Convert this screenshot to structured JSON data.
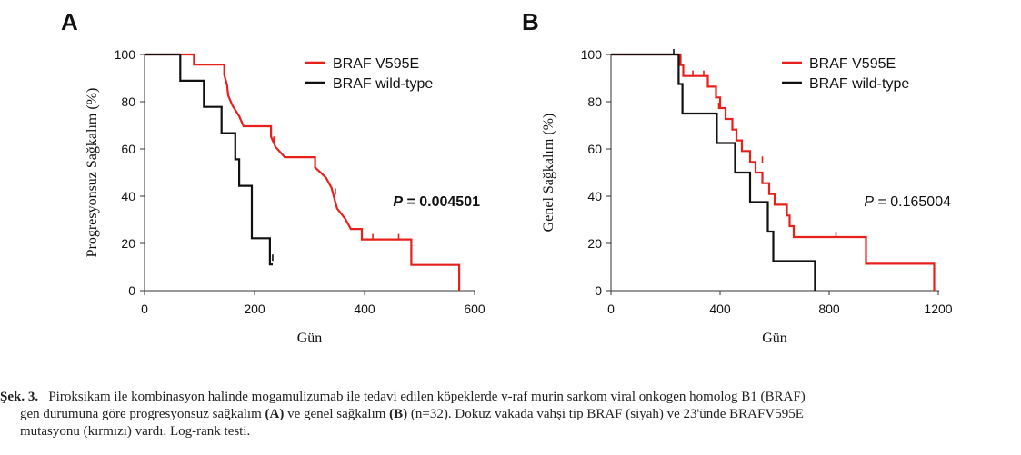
{
  "chart_data": [
    {
      "type": "line",
      "panel_letter": "A",
      "xlabel": "Gün",
      "ylabel": "Progresyonsuz Sağkalım (%)",
      "xlim": [
        0,
        600
      ],
      "ylim": [
        0,
        100
      ],
      "xticks": [
        0,
        200,
        400,
        600
      ],
      "yticks": [
        0,
        20,
        40,
        60,
        80,
        100
      ],
      "legend_position": "top-right",
      "p_label": "P",
      "p_value": " = 0.004501",
      "p_bold": true,
      "series": [
        {
          "name": "BRAF V595E",
          "color": "#e8201c",
          "steps": [
            [
              0,
              100
            ],
            [
              90,
              100
            ],
            [
              90,
              95.7
            ],
            [
              145,
              95.7
            ],
            [
              145,
              91.3
            ],
            [
              150,
              87
            ],
            [
              152,
              82.6
            ],
            [
              160,
              78.3
            ],
            [
              172,
              73.9
            ],
            [
              180,
              69.6
            ],
            [
              230,
              69.6
            ],
            [
              230,
              65.2
            ],
            [
              238,
              60.9
            ],
            [
              255,
              56.5
            ],
            [
              310,
              56.5
            ],
            [
              310,
              52.2
            ],
            [
              330,
              47.8
            ],
            [
              340,
              43.5
            ],
            [
              345,
              39.1
            ],
            [
              350,
              34.8
            ],
            [
              365,
              30.4
            ],
            [
              375,
              26.1
            ],
            [
              395,
              26.1
            ],
            [
              395,
              21.7
            ],
            [
              485,
              21.7
            ],
            [
              485,
              10.9
            ],
            [
              572,
              10.9
            ],
            [
              572,
              0
            ]
          ],
          "censored": [
            [
              230,
              65.2
            ],
            [
              235,
              63
            ],
            [
              347,
              41
            ],
            [
              415,
              21.7
            ],
            [
              462,
              21.7
            ]
          ]
        },
        {
          "name": "BRAF wild-type",
          "color": "#111111",
          "steps": [
            [
              0,
              100
            ],
            [
              65,
              100
            ],
            [
              65,
              88.9
            ],
            [
              108,
              88.9
            ],
            [
              108,
              77.8
            ],
            [
              140,
              77.8
            ],
            [
              140,
              66.7
            ],
            [
              165,
              66.7
            ],
            [
              165,
              55.6
            ],
            [
              172,
              55.6
            ],
            [
              172,
              44.4
            ],
            [
              195,
              44.4
            ],
            [
              195,
              22.2
            ],
            [
              228,
              22.2
            ],
            [
              228,
              11.1
            ],
            [
              233,
              11.1
            ]
          ],
          "censored": [
            [
              233,
              13
            ]
          ]
        }
      ]
    },
    {
      "type": "line",
      "panel_letter": "B",
      "xlabel": "Gün",
      "ylabel": "Genel Sağkalım (%)",
      "xlim": [
        0,
        1200
      ],
      "ylim": [
        0,
        100
      ],
      "xticks": [
        0,
        400,
        800,
        1200
      ],
      "yticks": [
        0,
        20,
        40,
        60,
        80,
        100
      ],
      "legend_position": "top-right",
      "p_label": "P",
      "p_value": " = 0.165004",
      "p_bold": false,
      "series": [
        {
          "name": "BRAF V595E",
          "color": "#e8201c",
          "steps": [
            [
              0,
              100
            ],
            [
              255,
              100
            ],
            [
              255,
              95.5
            ],
            [
              265,
              95.5
            ],
            [
              265,
              90.9
            ],
            [
              355,
              90.9
            ],
            [
              355,
              86.4
            ],
            [
              385,
              86.4
            ],
            [
              385,
              81.8
            ],
            [
              400,
              81.8
            ],
            [
              400,
              77.3
            ],
            [
              420,
              77.3
            ],
            [
              420,
              72.7
            ],
            [
              445,
              72.7
            ],
            [
              445,
              68.2
            ],
            [
              460,
              68.2
            ],
            [
              460,
              63.6
            ],
            [
              480,
              63.6
            ],
            [
              480,
              59.1
            ],
            [
              510,
              59.1
            ],
            [
              510,
              54.5
            ],
            [
              530,
              54.5
            ],
            [
              530,
              50
            ],
            [
              555,
              50
            ],
            [
              555,
              45.5
            ],
            [
              580,
              45.5
            ],
            [
              580,
              40.9
            ],
            [
              600,
              40.9
            ],
            [
              600,
              36.4
            ],
            [
              645,
              36.4
            ],
            [
              645,
              31.8
            ],
            [
              655,
              31.8
            ],
            [
              655,
              27.3
            ],
            [
              670,
              27.3
            ],
            [
              670,
              22.7
            ],
            [
              935,
              22.7
            ],
            [
              935,
              11.4
            ],
            [
              1185,
              11.4
            ],
            [
              1185,
              0
            ]
          ],
          "censored": [
            [
              300,
              90.9
            ],
            [
              340,
              90.9
            ],
            [
              395,
              77.3
            ],
            [
              555,
              54.5
            ],
            [
              825,
              22.7
            ]
          ]
        },
        {
          "name": "BRAF wild-type",
          "color": "#111111",
          "steps": [
            [
              0,
              100
            ],
            [
              248,
              100
            ],
            [
              248,
              87.5
            ],
            [
              262,
              87.5
            ],
            [
              262,
              75
            ],
            [
              388,
              75
            ],
            [
              388,
              62.5
            ],
            [
              455,
              62.5
            ],
            [
              455,
              50
            ],
            [
              510,
              50
            ],
            [
              510,
              37.5
            ],
            [
              575,
              37.5
            ],
            [
              575,
              25
            ],
            [
              595,
              25
            ],
            [
              595,
              12.5
            ],
            [
              748,
              12.5
            ],
            [
              748,
              0
            ]
          ],
          "censored": [
            [
              230,
              100
            ]
          ]
        }
      ]
    }
  ],
  "caption": {
    "label": "Şek. 3.",
    "line1_text": "Piroksikam ile kombinasyon halinde mogamulizumab ile tedavi edilen köpeklerde v-raf murin sarkom viral onkogen homolog B1 (BRAF)",
    "line2_a": "gen durumuna göre progresyonsuz sağkalım ",
    "line2_A": "(A)",
    "line2_b": " ve genel sağkalım ",
    "line2_B": "(B)",
    "line2_c": " (n=32). Dokuz vakada vahşi tip BRAF (siyah) ve 23'ünde BRAFV595E",
    "line3": "mutasyonu (kırmızı) vardı. Log-rank testi."
  }
}
